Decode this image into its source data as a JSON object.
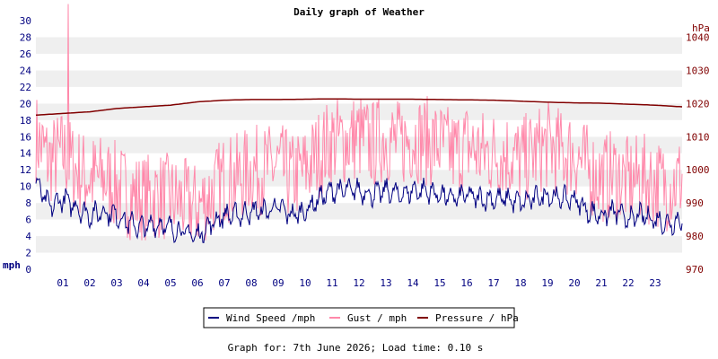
{
  "chart_data": {
    "type": "line",
    "title": "Daily graph of Weather",
    "footer": "Graph for: 7th June 2026; Load time: 0.10 s",
    "x_ticks": [
      "01",
      "02",
      "03",
      "04",
      "05",
      "06",
      "07",
      "08",
      "09",
      "10",
      "11",
      "12",
      "13",
      "14",
      "15",
      "16",
      "17",
      "18",
      "19",
      "20",
      "21",
      "22",
      "23"
    ],
    "x_range_hours": [
      0,
      24
    ],
    "y_left": {
      "unit": "mph",
      "range": [
        0,
        30
      ],
      "ticks": [
        "0",
        "2",
        "4",
        "6",
        "8",
        "10",
        "12",
        "14",
        "16",
        "18",
        "20",
        "22",
        "24",
        "26",
        "28",
        "30"
      ]
    },
    "y_right": {
      "unit": "hPa",
      "range": [
        970,
        1045
      ],
      "ticks": [
        "970",
        "980",
        "990",
        "1000",
        "1010",
        "1020",
        "1030",
        "1040"
      ]
    },
    "grid": "alternating horizontal bands",
    "legend_position": "bottom-center",
    "series": [
      {
        "name": "Wind Speed /mph",
        "axis": "left",
        "color": "#000080",
        "x": [
          0,
          0.5,
          1,
          1.5,
          2,
          2.5,
          3,
          3.5,
          4,
          4.5,
          5,
          5.5,
          6,
          6.5,
          7,
          7.5,
          8,
          8.5,
          9,
          9.5,
          10,
          10.5,
          11,
          11.5,
          12,
          12.5,
          13,
          13.5,
          14,
          14.5,
          15,
          15.5,
          16,
          16.5,
          17,
          17.5,
          18,
          18.5,
          19,
          19.5,
          20,
          20.5,
          21,
          21.5,
          22,
          22.5,
          23,
          23.5,
          24
        ],
        "values": [
          10.5,
          7.5,
          8.5,
          7.5,
          6.5,
          7,
          6.5,
          5.5,
          5,
          5.5,
          5,
          4.5,
          4,
          5.5,
          6.5,
          6.5,
          7,
          7,
          7.5,
          6.5,
          7,
          8.5,
          9.5,
          9.5,
          9.5,
          9,
          9.5,
          9,
          9.5,
          9.5,
          9,
          8.5,
          9,
          8.5,
          8.5,
          8.5,
          8,
          8.5,
          9,
          8.5,
          8.5,
          7,
          6.5,
          7,
          6,
          6.5,
          6,
          5.5,
          6
        ]
      },
      {
        "name": "Gust / mph",
        "axis": "left",
        "color": "#ff88aa",
        "x": [
          0,
          0.5,
          1,
          1.5,
          2,
          2.5,
          3,
          3.5,
          4,
          4.5,
          5,
          5.5,
          6,
          6.5,
          7,
          7.5,
          8,
          8.5,
          9,
          9.5,
          10,
          10.5,
          11,
          11.5,
          12,
          12.5,
          13,
          13.5,
          14,
          14.5,
          15,
          15.5,
          16,
          16.5,
          17,
          17.5,
          18,
          18.5,
          19,
          19.5,
          20,
          20.5,
          21,
          21.5,
          22,
          22.5,
          23,
          23.5,
          24
        ],
        "values": [
          16,
          13,
          14,
          12,
          11,
          11,
          10,
          9,
          8.5,
          9,
          8.5,
          8,
          7.5,
          9,
          11,
          11,
          12,
          12,
          12.5,
          11,
          12,
          14,
          15.5,
          15.5,
          16,
          15,
          16,
          15,
          16,
          15.5,
          15,
          14,
          15,
          14,
          14,
          14,
          13,
          14,
          15,
          14,
          14,
          12,
          11,
          11.5,
          10.5,
          11,
          10.5,
          10,
          11
        ],
        "peak": {
          "x": 1.2,
          "value": 32
        }
      },
      {
        "name": "Pressure / hPa",
        "axis": "right",
        "color": "#800000",
        "x": [
          0,
          1,
          2,
          3,
          4,
          5,
          6,
          7,
          8,
          9,
          10,
          11,
          12,
          13,
          14,
          15,
          16,
          17,
          18,
          19,
          20,
          21,
          22,
          23,
          24
        ],
        "values": [
          1016.5,
          1017,
          1017.5,
          1018.5,
          1019,
          1019.5,
          1020.5,
          1021,
          1021.2,
          1021.2,
          1021.3,
          1021.4,
          1021.3,
          1021.3,
          1021.3,
          1021.2,
          1021.1,
          1021,
          1020.7,
          1020.4,
          1020.2,
          1020.1,
          1019.8,
          1019.5,
          1019
        ]
      }
    ]
  }
}
